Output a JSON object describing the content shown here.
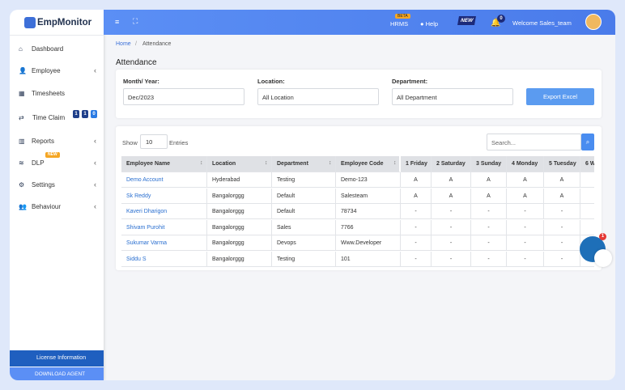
{
  "logo": "EmpMonitor",
  "sidebar": {
    "items": [
      "Dashboard",
      "Employee",
      "Timesheets",
      "Time Claim",
      "Reports",
      "DLP",
      "Settings",
      "Behaviour"
    ],
    "dlp_badge": "NEW",
    "time_claim_badges": [
      "1",
      "1",
      "0"
    ],
    "license": "License Information",
    "download": "DOWNLOAD AGENT"
  },
  "topbar": {
    "hrms": "HRMS",
    "beta": "BETA",
    "help": "Help",
    "new_badge": "NEW",
    "notifications": "0",
    "welcome": "Welcome Sales_team"
  },
  "breadcrumb": [
    "Home",
    "/",
    "Attendance"
  ],
  "page_title": "Attendance",
  "filters": {
    "month_label": "Month/ Year:",
    "month_value": "Dec/2023",
    "location_label": "Location:",
    "location_value": "All Location",
    "department_label": "Department:",
    "department_value": "All Department",
    "export": "Export Excel"
  },
  "table_controls": {
    "show": "Show",
    "entries_value": "10",
    "entries": "Entries",
    "search_placeholder": "Search..."
  },
  "table": {
    "headers": [
      "Employee Name",
      "Location",
      "Department",
      "Employee Code",
      "1 Friday",
      "2 Saturday",
      "3 Sunday",
      "4 Monday",
      "5 Tuesday",
      "6 W"
    ],
    "rows": [
      [
        "Demo Account",
        "Hyderabad",
        "Testing",
        "Demo-123",
        "A",
        "A",
        "A",
        "A",
        "A"
      ],
      [
        "Sk Reddy",
        "Bangalorggg",
        "Default",
        "Salesteam",
        "A",
        "A",
        "A",
        "A",
        "A"
      ],
      [
        "Kaveri Dharigon",
        "Bangalorggg",
        "Default",
        "78734",
        "-",
        "-",
        "-",
        "-",
        "-"
      ],
      [
        "Shivam Purohit",
        "Bangalorggg",
        "Sales",
        "7766",
        "-",
        "-",
        "-",
        "-",
        "-"
      ],
      [
        "Sukumar Varma",
        "Bangalorggg",
        "Devops",
        "Www.Developer",
        "-",
        "-",
        "-",
        "-",
        "-"
      ],
      [
        "Siddu S",
        "Bangalorggg",
        "Testing",
        "101",
        "-",
        "-",
        "-",
        "-",
        "-"
      ]
    ]
  },
  "chat_badge": "1"
}
